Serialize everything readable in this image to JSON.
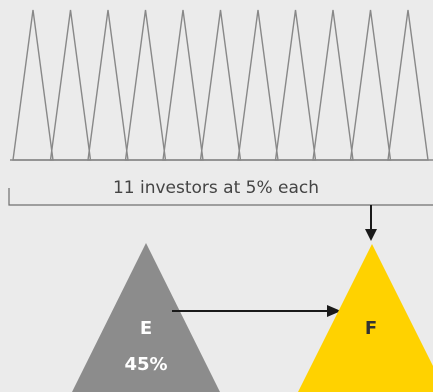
{
  "caption": {
    "text": "11 investors at 5% each"
  },
  "investors": {
    "count": 11
  },
  "nodes": {
    "e": {
      "letter": "E",
      "percent": "45%"
    },
    "f": {
      "letter": "F"
    }
  },
  "colors": {
    "background": "#ebebeb",
    "investor_outline": "#888888",
    "node_e_fill": "#8c8c8c",
    "node_e_text": "#ffffff",
    "node_f_fill": "#ffd200",
    "node_f_text": "#333333",
    "arrow": "#1a1a1a"
  }
}
